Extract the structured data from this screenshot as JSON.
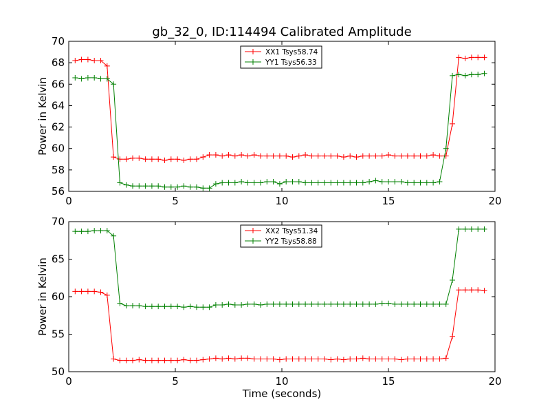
{
  "figure": {
    "title": "gb_32_0, ID:114494 Calibrated Amplitude"
  },
  "chart_data": [
    {
      "type": "line",
      "title": "gb_32_0, ID:114494 Calibrated Amplitude",
      "xlabel": "",
      "ylabel": "Power in Kelvin",
      "xlim": [
        0,
        20
      ],
      "ylim": [
        56,
        70
      ],
      "xticks": [
        0,
        5,
        10,
        15,
        20
      ],
      "yticks": [
        56,
        58,
        60,
        62,
        64,
        66,
        68,
        70
      ],
      "legend": "top-center",
      "marker": "+",
      "x": [
        0.3,
        0.6,
        0.9,
        1.2,
        1.5,
        1.8,
        2.1,
        2.4,
        2.7,
        3.0,
        3.3,
        3.6,
        3.9,
        4.2,
        4.5,
        4.8,
        5.1,
        5.4,
        5.7,
        6.0,
        6.3,
        6.6,
        6.9,
        7.2,
        7.5,
        7.8,
        8.1,
        8.4,
        8.7,
        9.0,
        9.3,
        9.6,
        9.9,
        10.2,
        10.5,
        10.8,
        11.1,
        11.4,
        11.7,
        12.0,
        12.3,
        12.6,
        12.9,
        13.2,
        13.5,
        13.8,
        14.1,
        14.4,
        14.7,
        15.0,
        15.3,
        15.6,
        15.9,
        16.2,
        16.5,
        16.8,
        17.1,
        17.4,
        17.7,
        18.0,
        18.3,
        18.6,
        18.9,
        19.2,
        19.5
      ],
      "series": [
        {
          "name": "XX1 Tsys58.74",
          "color": "#ff0000",
          "values": [
            68.2,
            68.3,
            68.3,
            68.2,
            68.2,
            67.7,
            59.2,
            59.0,
            59.0,
            59.1,
            59.1,
            59.0,
            59.0,
            59.0,
            58.9,
            59.0,
            59.0,
            58.9,
            59.0,
            59.0,
            59.2,
            59.4,
            59.4,
            59.3,
            59.4,
            59.3,
            59.4,
            59.3,
            59.4,
            59.3,
            59.3,
            59.3,
            59.3,
            59.3,
            59.2,
            59.3,
            59.4,
            59.3,
            59.3,
            59.3,
            59.3,
            59.3,
            59.2,
            59.3,
            59.2,
            59.3,
            59.3,
            59.3,
            59.3,
            59.4,
            59.3,
            59.3,
            59.3,
            59.3,
            59.3,
            59.3,
            59.4,
            59.3,
            59.3,
            62.3,
            68.5,
            68.4,
            68.5,
            68.5,
            68.5
          ]
        },
        {
          "name": "YY1 Tsys56.33",
          "color": "#008000",
          "values": [
            66.6,
            66.5,
            66.6,
            66.6,
            66.5,
            66.5,
            66.0,
            56.8,
            56.6,
            56.5,
            56.5,
            56.5,
            56.5,
            56.5,
            56.4,
            56.4,
            56.4,
            56.5,
            56.4,
            56.4,
            56.3,
            56.3,
            56.7,
            56.8,
            56.8,
            56.8,
            56.9,
            56.8,
            56.8,
            56.8,
            56.9,
            56.9,
            56.7,
            56.9,
            56.9,
            56.9,
            56.8,
            56.8,
            56.8,
            56.8,
            56.8,
            56.8,
            56.8,
            56.8,
            56.8,
            56.8,
            56.9,
            57.0,
            56.9,
            56.9,
            56.9,
            56.9,
            56.8,
            56.8,
            56.8,
            56.8,
            56.8,
            56.9,
            60.0,
            66.8,
            66.9,
            66.8,
            66.9,
            66.9,
            67.0
          ]
        }
      ]
    },
    {
      "type": "line",
      "title": "",
      "xlabel": "Time (seconds)",
      "ylabel": "Power in Kelvin",
      "xlim": [
        0,
        20
      ],
      "ylim": [
        50,
        70
      ],
      "xticks": [
        0,
        5,
        10,
        15,
        20
      ],
      "yticks": [
        50,
        55,
        60,
        65,
        70
      ],
      "legend": "top-center",
      "marker": "+",
      "x": [
        0.3,
        0.6,
        0.9,
        1.2,
        1.5,
        1.8,
        2.1,
        2.4,
        2.7,
        3.0,
        3.3,
        3.6,
        3.9,
        4.2,
        4.5,
        4.8,
        5.1,
        5.4,
        5.7,
        6.0,
        6.3,
        6.6,
        6.9,
        7.2,
        7.5,
        7.8,
        8.1,
        8.4,
        8.7,
        9.0,
        9.3,
        9.6,
        9.9,
        10.2,
        10.5,
        10.8,
        11.1,
        11.4,
        11.7,
        12.0,
        12.3,
        12.6,
        12.9,
        13.2,
        13.5,
        13.8,
        14.1,
        14.4,
        14.7,
        15.0,
        15.3,
        15.6,
        15.9,
        16.2,
        16.5,
        16.8,
        17.1,
        17.4,
        17.7,
        18.0,
        18.3,
        18.6,
        18.9,
        19.2,
        19.5
      ],
      "series": [
        {
          "name": "XX2 Tsys51.34",
          "color": "#ff0000",
          "values": [
            60.7,
            60.7,
            60.7,
            60.7,
            60.6,
            60.2,
            51.7,
            51.5,
            51.5,
            51.5,
            51.6,
            51.5,
            51.5,
            51.5,
            51.5,
            51.5,
            51.5,
            51.6,
            51.5,
            51.5,
            51.6,
            51.7,
            51.8,
            51.7,
            51.8,
            51.7,
            51.8,
            51.8,
            51.7,
            51.7,
            51.7,
            51.7,
            51.6,
            51.7,
            51.7,
            51.7,
            51.7,
            51.7,
            51.7,
            51.7,
            51.6,
            51.7,
            51.6,
            51.7,
            51.7,
            51.8,
            51.7,
            51.7,
            51.7,
            51.7,
            51.7,
            51.6,
            51.7,
            51.7,
            51.7,
            51.7,
            51.7,
            51.7,
            51.8,
            54.7,
            60.9,
            60.9,
            60.9,
            60.9,
            60.8
          ]
        },
        {
          "name": "YY2 Tsys58.88",
          "color": "#008000",
          "values": [
            68.7,
            68.7,
            68.7,
            68.8,
            68.8,
            68.8,
            68.1,
            59.1,
            58.8,
            58.8,
            58.8,
            58.7,
            58.7,
            58.7,
            58.7,
            58.7,
            58.7,
            58.6,
            58.7,
            58.6,
            58.6,
            58.6,
            58.9,
            58.9,
            59.0,
            58.9,
            58.9,
            59.0,
            59.0,
            58.9,
            59.0,
            59.0,
            59.0,
            59.0,
            59.0,
            59.0,
            59.0,
            59.0,
            59.0,
            59.0,
            59.0,
            59.0,
            59.0,
            59.0,
            59.0,
            59.0,
            59.0,
            59.0,
            59.1,
            59.1,
            59.0,
            59.0,
            59.0,
            59.0,
            59.0,
            59.0,
            59.0,
            59.0,
            59.0,
            62.2,
            69.0,
            69.0,
            69.0,
            69.0,
            69.0
          ]
        }
      ]
    }
  ]
}
